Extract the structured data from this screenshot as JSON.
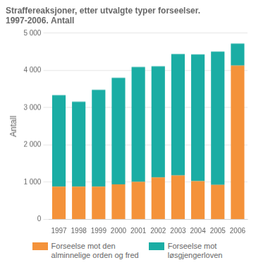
{
  "chart_data": {
    "type": "bar",
    "stacked": true,
    "title": "Straffereaksjoner, etter utvalgte typer forseelser.\n1997-2006. Antall",
    "ylabel": "Antall",
    "categories": [
      "1997",
      "1998",
      "1999",
      "2000",
      "2001",
      "2002",
      "2003",
      "2004",
      "2005",
      "2006"
    ],
    "series": [
      {
        "name": "Forseelse mot den\nalminnelige orden og fred",
        "color": "#F4923A",
        "values": [
          880,
          880,
          880,
          940,
          1010,
          1130,
          1180,
          1030,
          930,
          4130
        ]
      },
      {
        "name": "Forseelse mot\nløsgjengerloven",
        "color": "#1AADA4",
        "values": [
          2455,
          2280,
          2600,
          2860,
          3080,
          2980,
          3260,
          3400,
          3575,
          590
        ]
      }
    ],
    "ylim": [
      0,
      5000
    ],
    "yticks": [
      0,
      {
        "value": 1000,
        "label": "1 000"
      },
      {
        "value": 2000,
        "label": "2 000"
      },
      {
        "value": 3000,
        "label": "3 000"
      },
      {
        "value": 4000,
        "label": "4 000"
      },
      {
        "value": 5000,
        "label": "5 000"
      }
    ],
    "grid": true
  }
}
